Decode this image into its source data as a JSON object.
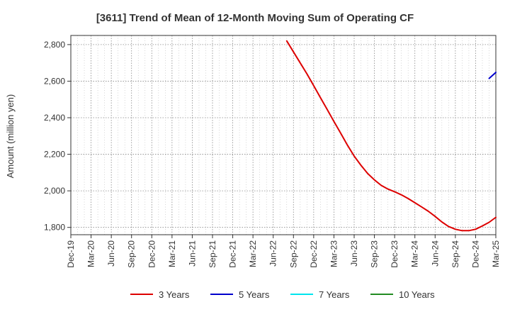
{
  "chart_data": {
    "type": "line",
    "title": "[3611]  Trend of Mean of 12-Month Moving Sum of Operating CF",
    "ylabel": "Amount (million yen)",
    "xlabel": "",
    "ylim": [
      1760,
      2850
    ],
    "yticks": [
      1800,
      2000,
      2200,
      2400,
      2600,
      2800
    ],
    "ytick_labels": [
      "1,800",
      "2,000",
      "2,200",
      "2,400",
      "2,600",
      "2,800"
    ],
    "xlim": [
      "2019-12",
      "2025-03"
    ],
    "xtick_labels": [
      "Dec-19",
      "Mar-20",
      "Jun-20",
      "Sep-20",
      "Dec-20",
      "Mar-21",
      "Jun-21",
      "Sep-21",
      "Dec-21",
      "Mar-22",
      "Jun-22",
      "Sep-22",
      "Dec-22",
      "Mar-23",
      "Jun-23",
      "Sep-23",
      "Dec-23",
      "Mar-24",
      "Jun-24",
      "Sep-24",
      "Dec-24",
      "Mar-25"
    ],
    "grid": true,
    "legend_position": "bottom",
    "series": [
      {
        "name": "3 Years",
        "color": "#dd0000",
        "points": [
          [
            "2022-08",
            2820
          ],
          [
            "2022-09",
            2760
          ],
          [
            "2022-10",
            2700
          ],
          [
            "2022-11",
            2640
          ],
          [
            "2022-12",
            2575
          ],
          [
            "2023-01",
            2510
          ],
          [
            "2023-02",
            2445
          ],
          [
            "2023-03",
            2380
          ],
          [
            "2023-04",
            2315
          ],
          [
            "2023-05",
            2250
          ],
          [
            "2023-06",
            2190
          ],
          [
            "2023-07",
            2140
          ],
          [
            "2023-08",
            2095
          ],
          [
            "2023-09",
            2060
          ],
          [
            "2023-10",
            2030
          ],
          [
            "2023-11",
            2010
          ],
          [
            "2023-12",
            1995
          ],
          [
            "2024-01",
            1978
          ],
          [
            "2024-02",
            1958
          ],
          [
            "2024-03",
            1935
          ],
          [
            "2024-04",
            1912
          ],
          [
            "2024-05",
            1888
          ],
          [
            "2024-06",
            1860
          ],
          [
            "2024-07",
            1830
          ],
          [
            "2024-08",
            1805
          ],
          [
            "2024-09",
            1790
          ],
          [
            "2024-10",
            1782
          ],
          [
            "2024-11",
            1782
          ],
          [
            "2024-12",
            1790
          ],
          [
            "2025-01",
            1808
          ],
          [
            "2025-02",
            1828
          ],
          [
            "2025-03",
            1855
          ]
        ]
      },
      {
        "name": "5 Years",
        "color": "#0000cc",
        "points": [
          [
            "2025-02",
            2615
          ],
          [
            "2025-03",
            2648
          ]
        ]
      },
      {
        "name": "7 Years",
        "color": "#00e5ee",
        "points": []
      },
      {
        "name": "10 Years",
        "color": "#228b22",
        "points": []
      }
    ]
  }
}
